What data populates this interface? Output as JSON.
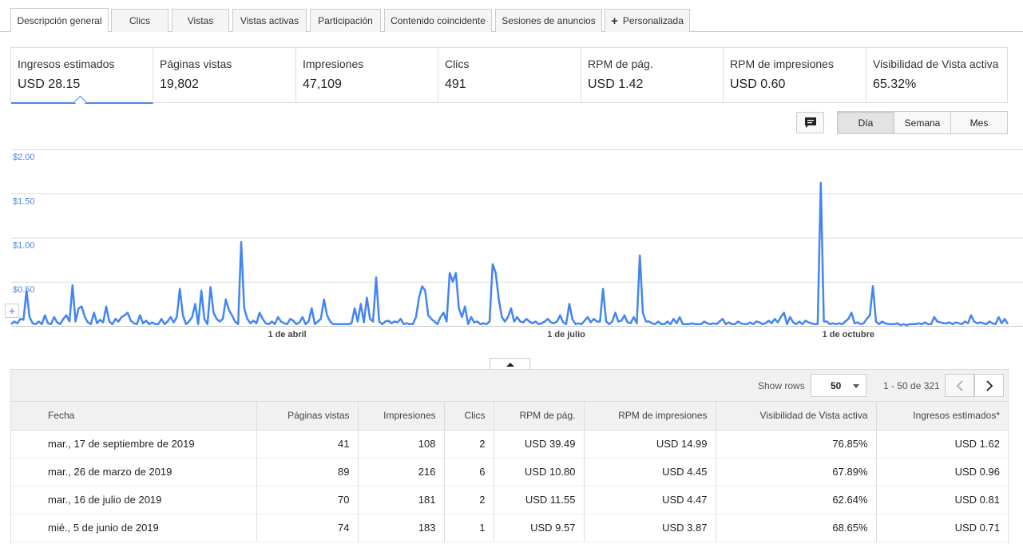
{
  "tabs": [
    {
      "label": "Descripción general",
      "active": true
    },
    {
      "label": "Clics"
    },
    {
      "label": "Vistas"
    },
    {
      "label": "Vistas activas"
    },
    {
      "label": "Participación"
    },
    {
      "label": "Contenido coincidente"
    },
    {
      "label": "Sesiones de anuncios"
    },
    {
      "label": "Personalizada",
      "icon": "plus-icon"
    }
  ],
  "scorecards": [
    {
      "label": "Ingresos estimados",
      "value": "USD 28.15",
      "active": true
    },
    {
      "label": "Páginas vistas",
      "value": "19,802"
    },
    {
      "label": "Impresiones",
      "value": "47,109"
    },
    {
      "label": "Clics",
      "value": "491"
    },
    {
      "label": "RPM de pág.",
      "value": "USD 1.42"
    },
    {
      "label": "RPM de impresiones",
      "value": "USD 0.60"
    },
    {
      "label": "Visibilidad de Vista activa",
      "value": "65.32%"
    }
  ],
  "granularity": {
    "options": [
      "Día",
      "Semana",
      "Mes"
    ],
    "selected": "Día"
  },
  "comment_icon": "comment-icon",
  "chart_data": {
    "type": "line",
    "title": "",
    "xlabel": "",
    "ylabel": "",
    "color": "#4285f4",
    "y_ticks": [
      "$2.00",
      "$1.50",
      "$1.00",
      "$0.50"
    ],
    "ylim": [
      0,
      2.0
    ],
    "x_ticks": [
      {
        "label": "1 de abril",
        "day_index": 90
      },
      {
        "label": "1 de julio",
        "day_index": 181
      },
      {
        "label": "1 de octubre",
        "day_index": 273
      }
    ],
    "series": [
      {
        "values": [
          0.02,
          0.05,
          0.03,
          0.08,
          0.07,
          0.4,
          0.1,
          0.03,
          0.02,
          0.05,
          0.02,
          0.12,
          0.03,
          0.02,
          0.1,
          0.04,
          0.02,
          0.08,
          0.12,
          0.05,
          0.46,
          0.05,
          0.2,
          0.22,
          0.1,
          0.04,
          0.02,
          0.15,
          0.03,
          0.07,
          0.04,
          0.22,
          0.05,
          0.02,
          0.08,
          0.05,
          0.1,
          0.12,
          0.15,
          0.06,
          0.03,
          0.02,
          0.12,
          0.03,
          0.06,
          0.02,
          0.04,
          0.02,
          0.02,
          0.08,
          0.02,
          0.05,
          0.1,
          0.04,
          0.1,
          0.42,
          0.12,
          0.02,
          0.05,
          0.1,
          0.25,
          0.02,
          0.4,
          0.08,
          0.02,
          0.44,
          0.15,
          0.08,
          0.05,
          0.08,
          0.3,
          0.18,
          0.12,
          0.05,
          0.02,
          0.95,
          0.2,
          0.08,
          0.03,
          0.06,
          0.03,
          0.15,
          0.08,
          0.03,
          0.02,
          0.05,
          0.02,
          0.1,
          0.05,
          0.03,
          0.02,
          0.08,
          0.06,
          0.02,
          0.04,
          0.1,
          0.02,
          0.05,
          0.2,
          0.02,
          0.05,
          0.08,
          0.3,
          0.12,
          0.05,
          0.02,
          0.02,
          0.02,
          0.02,
          0.02,
          0.02,
          0.03,
          0.2,
          0.05,
          0.25,
          0.04,
          0.32,
          0.08,
          0.05,
          0.55,
          0.05,
          0.02,
          0.05,
          0.06,
          0.03,
          0.05,
          0.04,
          0.08,
          0.02,
          0.03,
          0.02,
          0.02,
          0.1,
          0.32,
          0.45,
          0.4,
          0.12,
          0.08,
          0.05,
          0.02,
          0.1,
          0.15,
          0.05,
          0.6,
          0.5,
          0.6,
          0.2,
          0.1,
          0.22,
          0.02,
          0.1,
          0.04,
          0.05,
          0.02,
          0.03,
          0.02,
          0.05,
          0.7,
          0.6,
          0.3,
          0.1,
          0.05,
          0.1,
          0.2,
          0.05,
          0.1,
          0.05,
          0.04,
          0.08,
          0.05,
          0.03,
          0.05,
          0.02,
          0.03,
          0.05,
          0.08,
          0.04,
          0.03,
          0.05,
          0.12,
          0.04,
          0.02,
          0.25,
          0.08,
          0.02,
          0.03,
          0.02,
          0.06,
          0.1,
          0.04,
          0.08,
          0.05,
          0.05,
          0.42,
          0.05,
          0.02,
          0.05,
          0.15,
          0.05,
          0.06,
          0.12,
          0.04,
          0.03,
          0.1,
          0.03,
          0.8,
          0.15,
          0.05,
          0.05,
          0.03,
          0.02,
          0.05,
          0.02,
          0.02,
          0.05,
          0.02,
          0.08,
          0.03,
          0.1,
          0.02,
          0.02,
          0.02,
          0.03,
          0.02,
          0.02,
          0.02,
          0.05,
          0.03,
          0.02,
          0.03,
          0.02,
          0.05,
          0.08,
          0.02,
          0.04,
          0.02,
          0.02,
          0.05,
          0.03,
          0.02,
          0.02,
          0.04,
          0.02,
          0.05,
          0.04,
          0.02,
          0.03,
          0.06,
          0.03,
          0.08,
          0.04,
          0.1,
          0.15,
          0.02,
          0.1,
          0.04,
          0.02,
          0.05,
          0.02,
          0.06,
          0.04,
          0.03,
          0.02,
          0.02,
          1.62,
          0.05,
          0.05,
          0.02,
          0.03,
          0.02,
          0.03,
          0.02,
          0.05,
          0.08,
          0.15,
          0.03,
          0.04,
          0.02,
          0.03,
          0.08,
          0.12,
          0.45,
          0.05,
          0.02,
          0.05,
          0.03,
          0.02,
          0.02,
          0.02,
          0.03,
          0.01,
          0.02,
          0.01,
          0.02,
          0.02,
          0.02,
          0.03,
          0.02,
          0.04,
          0.02,
          0.02,
          0.1,
          0.05,
          0.04,
          0.03,
          0.03,
          0.04,
          0.02,
          0.04,
          0.03,
          0.02,
          0.05,
          0.03,
          0.12,
          0.05,
          0.03,
          0.04,
          0.03,
          0.02,
          0.05,
          0.03,
          0.02,
          0.1,
          0.03,
          0.08,
          0.02
        ]
      }
    ]
  },
  "table": {
    "show_rows_label": "Show rows",
    "rows_per_page": "50",
    "range_label": "1 - 50 de 321",
    "columns": [
      "Fecha",
      "Páginas vistas",
      "Impresiones",
      "Clics",
      "RPM de pág.",
      "RPM de impresiones",
      "Visibilidad de Vista activa",
      "Ingresos estimados*"
    ],
    "rows": [
      [
        "mar., 17 de septiembre de 2019",
        "41",
        "108",
        "2",
        "USD 39.49",
        "USD 14.99",
        "76.85%",
        "USD 1.62"
      ],
      [
        "mar., 26 de marzo de 2019",
        "89",
        "216",
        "6",
        "USD 10.80",
        "USD 4.45",
        "67.89%",
        "USD 0.96"
      ],
      [
        "mar., 16 de julio de 2019",
        "70",
        "181",
        "2",
        "USD 11.55",
        "USD 4.47",
        "62.64%",
        "USD 0.81"
      ],
      [
        "mié., 5 de junio de 2019",
        "74",
        "183",
        "1",
        "USD 9.57",
        "USD 3.87",
        "68.65%",
        "USD 0.71"
      ]
    ]
  }
}
